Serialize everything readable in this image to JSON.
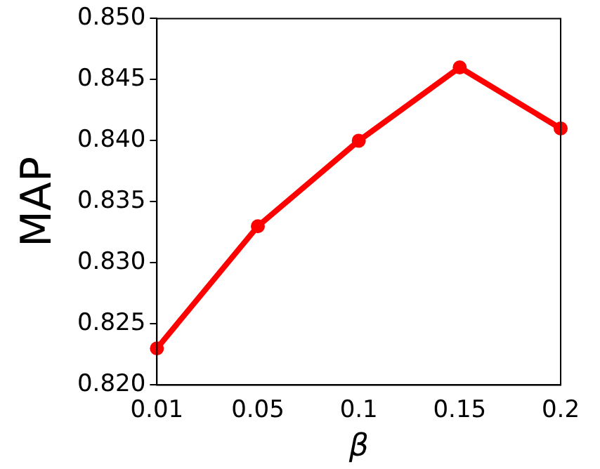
{
  "chart_data": {
    "type": "line",
    "xlabel": "β",
    "ylabel": "MAP",
    "categories": [
      "0.01",
      "0.05",
      "0.1",
      "0.15",
      "0.2"
    ],
    "series": [
      {
        "color": "#ff0000",
        "values": [
          0.823,
          0.833,
          0.84,
          0.846,
          0.841
        ]
      }
    ],
    "ylim": [
      0.82,
      0.85
    ],
    "yticks": [
      {
        "value": 0.82,
        "label": "0.820"
      },
      {
        "value": 0.825,
        "label": "0.825"
      },
      {
        "value": 0.83,
        "label": "0.830"
      },
      {
        "value": 0.835,
        "label": "0.835"
      },
      {
        "value": 0.84,
        "label": "0.840"
      },
      {
        "value": 0.845,
        "label": "0.845"
      },
      {
        "value": 0.85,
        "label": "0.850"
      }
    ],
    "grid": false,
    "legend": false,
    "marker": "circle",
    "line_style": "solid"
  }
}
